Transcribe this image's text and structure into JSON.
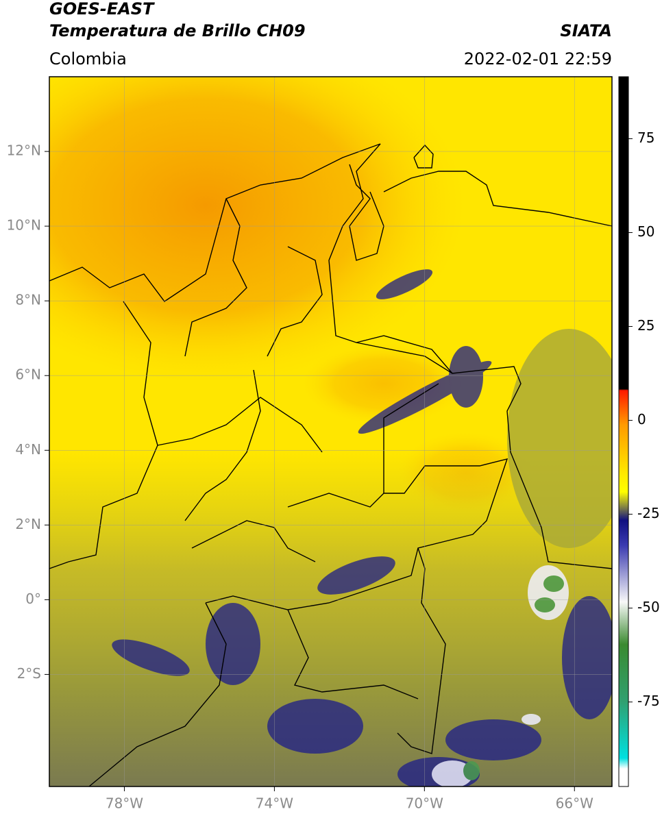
{
  "header": {
    "title": "GOES-EAST",
    "subtitle": "Temperatura de Brillo CH09",
    "source": "SIATA",
    "region": "Colombia",
    "datetime": "2022-02-01 22:59"
  },
  "map": {
    "xlim": [
      -80,
      -65
    ],
    "ylim": [
      -5,
      14
    ],
    "grid": true,
    "xticks": [
      {
        "value": -78,
        "label": "78°W"
      },
      {
        "value": -74,
        "label": "74°W"
      },
      {
        "value": -70,
        "label": "70°W"
      },
      {
        "value": -66,
        "label": "66°W"
      }
    ],
    "yticks": [
      {
        "value": 12,
        "label": "12°N"
      },
      {
        "value": 10,
        "label": "10°N"
      },
      {
        "value": 8,
        "label": "8°N"
      },
      {
        "value": 6,
        "label": "6°N"
      },
      {
        "value": 4,
        "label": "4°N"
      },
      {
        "value": 2,
        "label": "2°N"
      },
      {
        "value": 0,
        "label": "0°"
      },
      {
        "value": -2,
        "label": "2°S"
      }
    ]
  },
  "colorbar": {
    "lim": [
      -97.5,
      91.5
    ],
    "ticks": [
      75,
      50,
      25,
      0,
      -25,
      -50,
      -75
    ]
  }
}
